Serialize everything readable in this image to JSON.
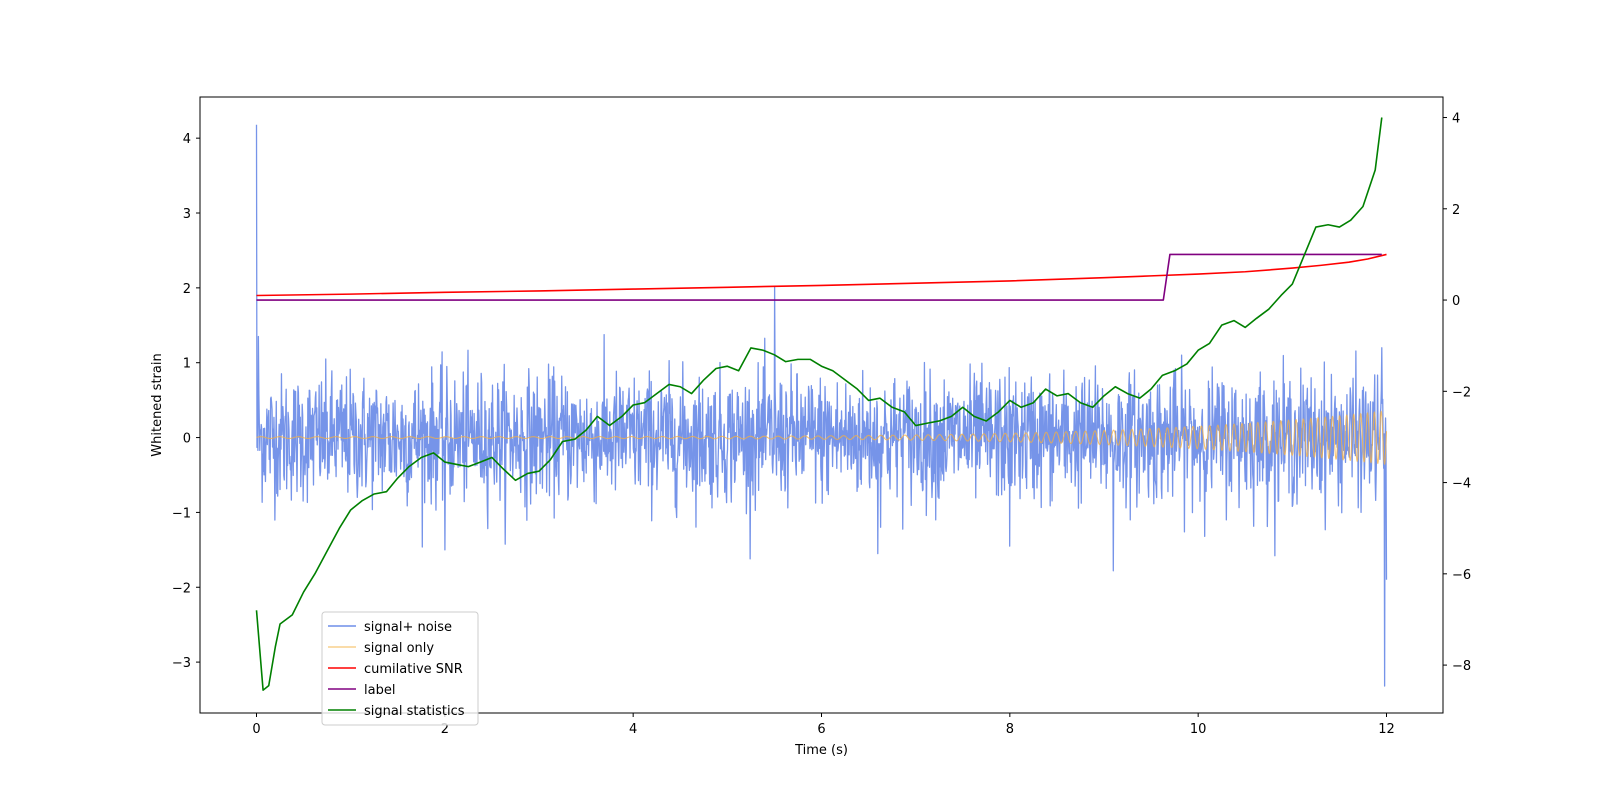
{
  "chart_data": {
    "type": "line",
    "title": "",
    "xlabel": "Time (s)",
    "ylabel": "Whitened strain",
    "y2label": "",
    "xlim": [
      -0.6,
      12.6
    ],
    "ylim": [
      -3.68,
      4.55
    ],
    "y2lim": [
      -9.05,
      4.45
    ],
    "grid": false,
    "legend_position": "lower-left",
    "x_ticks": [
      0,
      2,
      4,
      6,
      8,
      10,
      12
    ],
    "x_tick_labels": [
      "0",
      "2",
      "4",
      "6",
      "8",
      "10",
      "12"
    ],
    "y_ticks": [
      4,
      3,
      2,
      1,
      0,
      -1,
      -2,
      -3
    ],
    "y_tick_labels": [
      "4",
      "3",
      "2",
      "1",
      "0",
      "−1",
      "−2",
      "−3"
    ],
    "y2_ticks": [
      4,
      2,
      0,
      -2,
      -4,
      -6,
      -8
    ],
    "y2_tick_labels": [
      "4",
      "2",
      "0",
      "−2",
      "−4",
      "−6",
      "−8"
    ],
    "series": [
      {
        "name": "signal+ noise",
        "color": "#6f8ee8",
        "axis": "left",
        "style": "noise",
        "x_range": [
          0,
          12
        ],
        "std": 0.42,
        "spikes": [
          [
            0.0,
            4.18
          ],
          [
            0.02,
            1.35
          ],
          [
            5.5,
            2.02
          ],
          [
            5.52,
            -0.5
          ],
          [
            11.95,
            1.2
          ],
          [
            11.98,
            -3.32
          ],
          [
            12.0,
            -1.9
          ],
          [
            8.0,
            -1.45
          ],
          [
            9.1,
            -1.78
          ],
          [
            2.0,
            -1.5
          ],
          [
            6.6,
            -1.55
          ]
        ]
      },
      {
        "name": "signal only",
        "color": "#f5b041",
        "axis": "left",
        "style": "chirp",
        "x_range": [
          0,
          12
        ],
        "amplitude_start": 0.012,
        "amplitude_end": 0.36,
        "freq_start_hz": 5,
        "freq_end_hz": 14
      },
      {
        "name": "cumilative SNR",
        "color": "#ff0000",
        "axis": "right",
        "x": [
          0,
          1,
          2,
          3,
          4,
          5,
          6,
          7,
          8,
          9,
          9.5,
          10,
          10.5,
          11,
          11.3,
          11.6,
          11.8,
          12
        ],
        "y": [
          0.1,
          0.13,
          0.17,
          0.2,
          0.24,
          0.28,
          0.32,
          0.37,
          0.42,
          0.49,
          0.53,
          0.57,
          0.62,
          0.7,
          0.76,
          0.83,
          0.9,
          1.0
        ]
      },
      {
        "name": "label",
        "color": "#800080",
        "axis": "right",
        "x": [
          0,
          9.63,
          9.7,
          11.95
        ],
        "y": [
          0,
          0,
          1,
          1
        ]
      },
      {
        "name": "signal statistics",
        "color": "#008000",
        "axis": "right",
        "x": [
          0,
          0.07,
          0.13,
          0.2,
          0.25,
          0.38,
          0.5,
          0.62,
          0.75,
          0.88,
          1.0,
          1.12,
          1.25,
          1.38,
          1.5,
          1.62,
          1.75,
          1.88,
          2.0,
          2.12,
          2.25,
          2.38,
          2.5,
          2.62,
          2.75,
          2.88,
          3.0,
          3.12,
          3.25,
          3.38,
          3.5,
          3.62,
          3.75,
          3.88,
          4.0,
          4.12,
          4.25,
          4.38,
          4.5,
          4.62,
          4.75,
          4.88,
          5.0,
          5.12,
          5.25,
          5.38,
          5.5,
          5.62,
          5.75,
          5.88,
          6.0,
          6.12,
          6.25,
          6.38,
          6.5,
          6.62,
          6.75,
          6.88,
          7.0,
          7.12,
          7.25,
          7.38,
          7.5,
          7.62,
          7.75,
          7.88,
          8.0,
          8.12,
          8.25,
          8.38,
          8.5,
          8.62,
          8.75,
          8.88,
          9.0,
          9.12,
          9.25,
          9.38,
          9.5,
          9.62,
          9.75,
          9.88,
          10.0,
          10.12,
          10.25,
          10.38,
          10.5,
          10.62,
          10.75,
          10.88,
          11.0,
          11.12,
          11.25,
          11.38,
          11.5,
          11.62,
          11.75,
          11.88,
          11.95
        ],
        "y": [
          -6.8,
          -8.55,
          -8.45,
          -7.6,
          -7.1,
          -6.9,
          -6.4,
          -6.0,
          -5.5,
          -5.0,
          -4.6,
          -4.4,
          -4.25,
          -4.2,
          -3.9,
          -3.65,
          -3.45,
          -3.35,
          -3.55,
          -3.6,
          -3.65,
          -3.55,
          -3.45,
          -3.7,
          -3.95,
          -3.8,
          -3.75,
          -3.5,
          -3.1,
          -3.05,
          -2.85,
          -2.55,
          -2.75,
          -2.55,
          -2.3,
          -2.25,
          -2.05,
          -1.85,
          -1.9,
          -2.05,
          -1.75,
          -1.5,
          -1.45,
          -1.55,
          -1.05,
          -1.1,
          -1.2,
          -1.35,
          -1.3,
          -1.3,
          -1.45,
          -1.55,
          -1.75,
          -1.95,
          -2.2,
          -2.15,
          -2.35,
          -2.45,
          -2.75,
          -2.7,
          -2.65,
          -2.55,
          -2.35,
          -2.55,
          -2.65,
          -2.45,
          -2.2,
          -2.35,
          -2.25,
          -1.95,
          -2.1,
          -2.05,
          -2.25,
          -2.35,
          -2.1,
          -1.9,
          -2.05,
          -2.15,
          -1.95,
          -1.65,
          -1.55,
          -1.4,
          -1.1,
          -0.95,
          -0.55,
          -0.45,
          -0.6,
          -0.4,
          -0.2,
          0.1,
          0.35,
          0.95,
          1.6,
          1.65,
          1.6,
          1.75,
          2.05,
          2.85,
          4.0
        ]
      }
    ]
  }
}
